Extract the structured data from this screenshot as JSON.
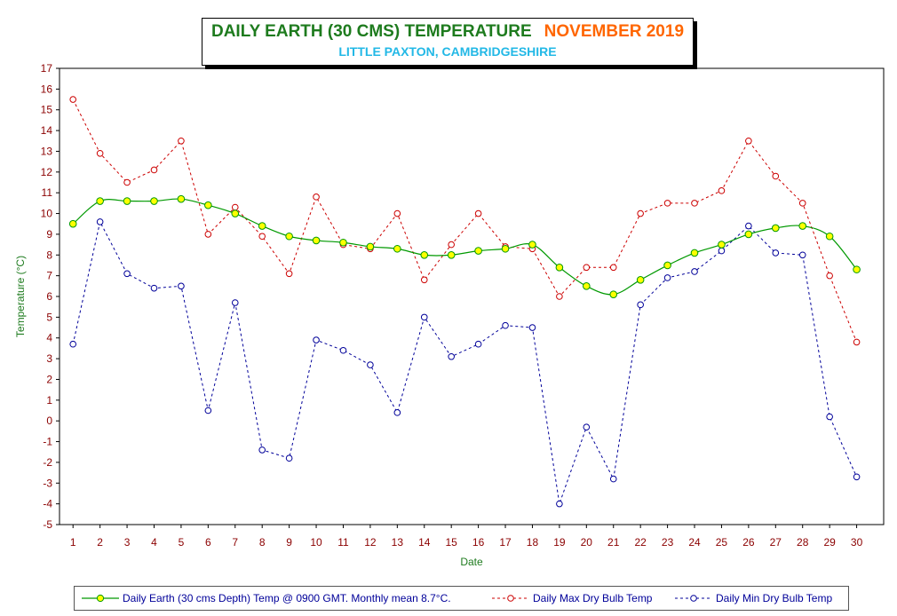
{
  "title": {
    "main": "DAILY EARTH (30 CMS) TEMPERATURE",
    "month": "NOVEMBER 2019",
    "subtitle": "LITTLE PAXTON, CAMBRIDGESHIRE"
  },
  "colors": {
    "earth": "#009900",
    "earth_marker": "#ffff00",
    "max": "#cc0000",
    "min": "#000099",
    "axis_label": "#1e7b1e",
    "tick_label": "#8b0000"
  },
  "chart_data": {
    "type": "line",
    "ylabel": "Temperature (°C)",
    "xlabel": "Date",
    "ylim": [
      -5,
      17
    ],
    "yticks": [
      -5,
      -4,
      -3,
      -2,
      -1,
      0,
      1,
      2,
      3,
      4,
      5,
      6,
      7,
      8,
      9,
      10,
      11,
      12,
      13,
      14,
      15,
      16,
      17
    ],
    "x": [
      1,
      2,
      3,
      4,
      5,
      6,
      7,
      8,
      9,
      10,
      11,
      12,
      13,
      14,
      15,
      16,
      17,
      18,
      19,
      20,
      21,
      22,
      23,
      24,
      25,
      26,
      27,
      28,
      29,
      30
    ],
    "grid": true,
    "legend_position": "bottom",
    "series": [
      {
        "name": "Daily Earth (30 cms Depth) Temp @ 0900 GMT. Monthly mean 8.7°C.",
        "style": "solid-smooth",
        "values": [
          9.5,
          10.6,
          10.6,
          10.6,
          10.7,
          10.4,
          10.0,
          9.4,
          8.9,
          8.7,
          8.6,
          8.4,
          8.3,
          8.0,
          8.0,
          8.2,
          8.3,
          8.5,
          7.4,
          6.5,
          6.1,
          6.8,
          7.5,
          8.1,
          8.5,
          9.0,
          9.3,
          9.4,
          8.9,
          7.3
        ]
      },
      {
        "name": "Daily Max Dry Bulb Temp",
        "style": "dashed",
        "values": [
          15.5,
          12.9,
          11.5,
          12.1,
          13.5,
          9.0,
          10.3,
          8.9,
          7.1,
          10.8,
          8.5,
          8.3,
          10.0,
          6.8,
          8.5,
          10.0,
          8.4,
          8.3,
          6.0,
          7.4,
          7.4,
          10.0,
          10.5,
          10.5,
          11.1,
          13.5,
          11.8,
          10.5,
          7.0,
          3.8
        ]
      },
      {
        "name": "Daily Min Dry Bulb Temp",
        "style": "dashed",
        "values": [
          3.7,
          9.6,
          7.1,
          6.4,
          6.5,
          0.5,
          5.7,
          -1.4,
          -1.8,
          3.9,
          3.4,
          2.7,
          0.4,
          5.0,
          3.1,
          3.7,
          4.6,
          4.5,
          -4.0,
          -0.3,
          -2.8,
          5.6,
          6.9,
          7.2,
          8.2,
          9.4,
          8.1,
          8.0,
          0.2,
          -2.7
        ]
      }
    ]
  }
}
